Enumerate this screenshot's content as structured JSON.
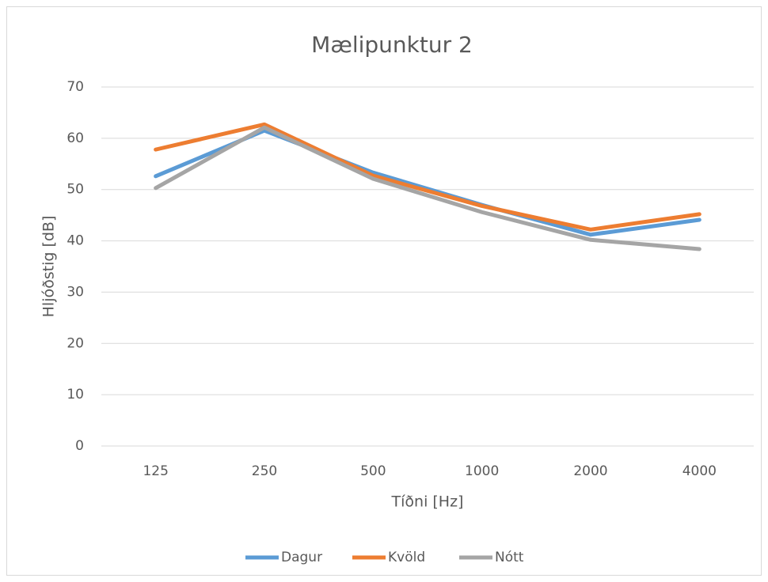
{
  "chart_data": {
    "type": "line",
    "title": "Mælipunktur 2",
    "x_label": "Tíðni [Hz]",
    "y_label": "Hljóðstig [dB]",
    "categories": [
      "125",
      "250",
      "500",
      "1000",
      "2000",
      "4000"
    ],
    "series": [
      {
        "name": "Dagur",
        "color": "#5b9bd5",
        "values": [
          52.6,
          61.5,
          53.3,
          47.0,
          41.2,
          44.1
        ]
      },
      {
        "name": "Kvöld",
        "color": "#ed7d31",
        "values": [
          57.8,
          62.7,
          52.7,
          46.8,
          42.2,
          45.2
        ]
      },
      {
        "name": "Nótt",
        "color": "#a5a5a5",
        "values": [
          50.3,
          62.1,
          52.1,
          45.6,
          40.2,
          38.4
        ]
      }
    ],
    "ylim": [
      0,
      70
    ],
    "yticks": [
      0,
      10,
      20,
      30,
      40,
      50,
      60,
      70
    ],
    "grid": true,
    "legend": "bottom"
  }
}
